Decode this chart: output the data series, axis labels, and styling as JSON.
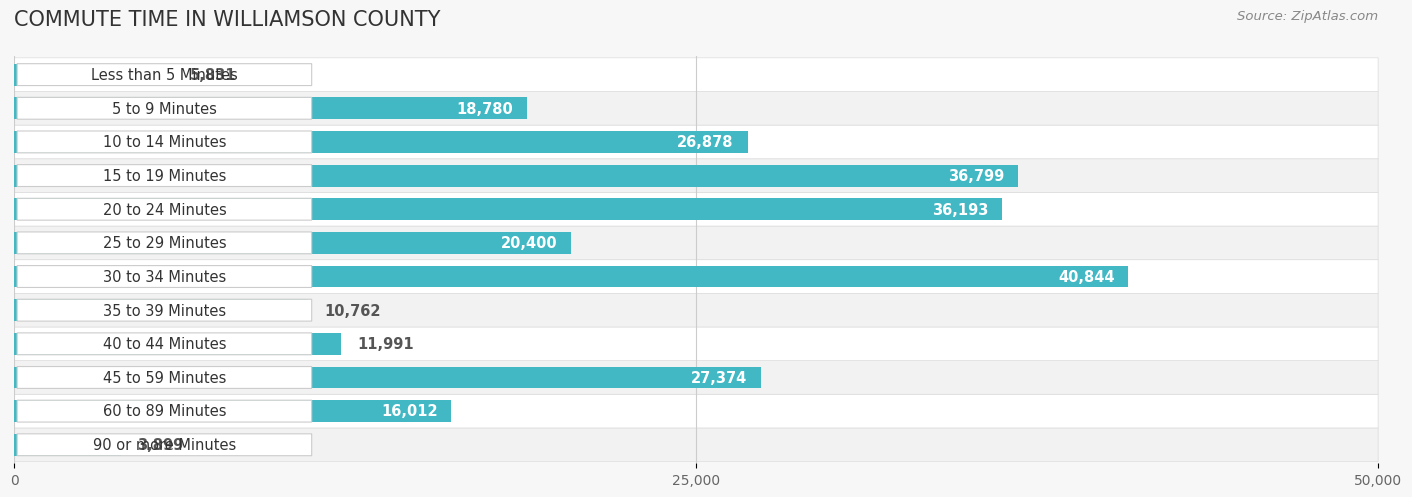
{
  "title": "COMMUTE TIME IN WILLIAMSON COUNTY",
  "source": "Source: ZipAtlas.com",
  "categories": [
    "Less than 5 Minutes",
    "5 to 9 Minutes",
    "10 to 14 Minutes",
    "15 to 19 Minutes",
    "20 to 24 Minutes",
    "25 to 29 Minutes",
    "30 to 34 Minutes",
    "35 to 39 Minutes",
    "40 to 44 Minutes",
    "45 to 59 Minutes",
    "60 to 89 Minutes",
    "90 or more Minutes"
  ],
  "values": [
    5831,
    18780,
    26878,
    36799,
    36193,
    20400,
    40844,
    10762,
    11991,
    27374,
    16012,
    3899
  ],
  "bar_color": "#41b8c4",
  "label_color_inside": "#ffffff",
  "label_color_outside": "#555555",
  "background_color": "#f7f7f7",
  "row_bg_light": "#f2f2f2",
  "row_bg_dark": "#e8e8e8",
  "pill_bg": "#ffffff",
  "pill_border": "#cccccc",
  "xlim": [
    0,
    50000
  ],
  "xticks": [
    0,
    25000,
    50000
  ],
  "xtick_labels": [
    "0",
    "25,000",
    "50,000"
  ],
  "title_fontsize": 15,
  "label_fontsize": 10.5,
  "tick_fontsize": 10,
  "source_fontsize": 9.5,
  "inside_label_threshold": 14000,
  "bar_height": 0.65
}
